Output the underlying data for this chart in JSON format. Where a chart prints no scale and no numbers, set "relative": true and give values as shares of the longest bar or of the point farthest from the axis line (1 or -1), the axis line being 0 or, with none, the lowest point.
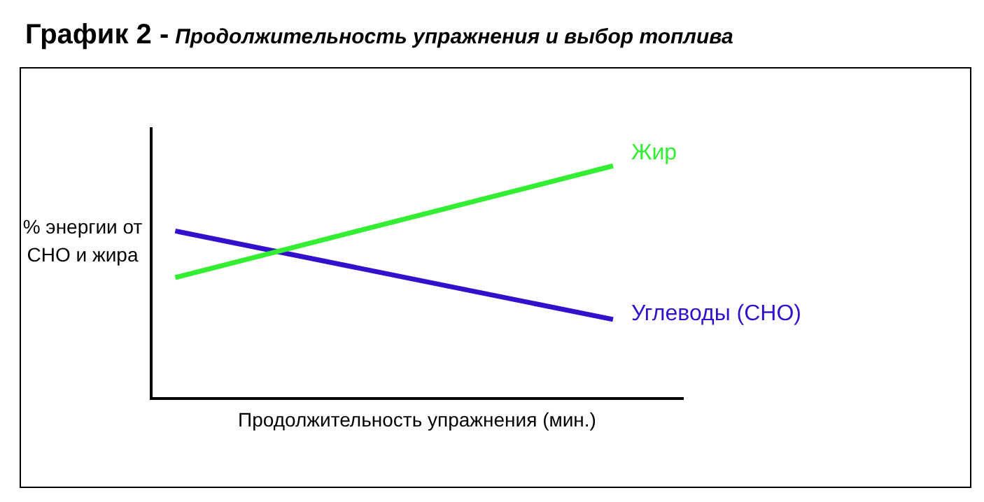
{
  "chart_data": {
    "type": "line",
    "title": "График 2 -",
    "subtitle": "Продолжительность упражнения и выбор топлива",
    "xlabel": "Продолжительность упражнения (мин.)",
    "ylabel": "% энергии от СНО и жира",
    "categories": [
      null,
      null
    ],
    "relative": true,
    "legend": false,
    "grid": false,
    "marker": "none",
    "series": [
      {
        "name": "Жир",
        "color": "#33ee33",
        "values": [
          0.52,
          1
        ]
      },
      {
        "name": "Углеводы (СНО)",
        "color": "#3311cc",
        "values": [
          0.72,
          0.34
        ]
      }
    ]
  }
}
